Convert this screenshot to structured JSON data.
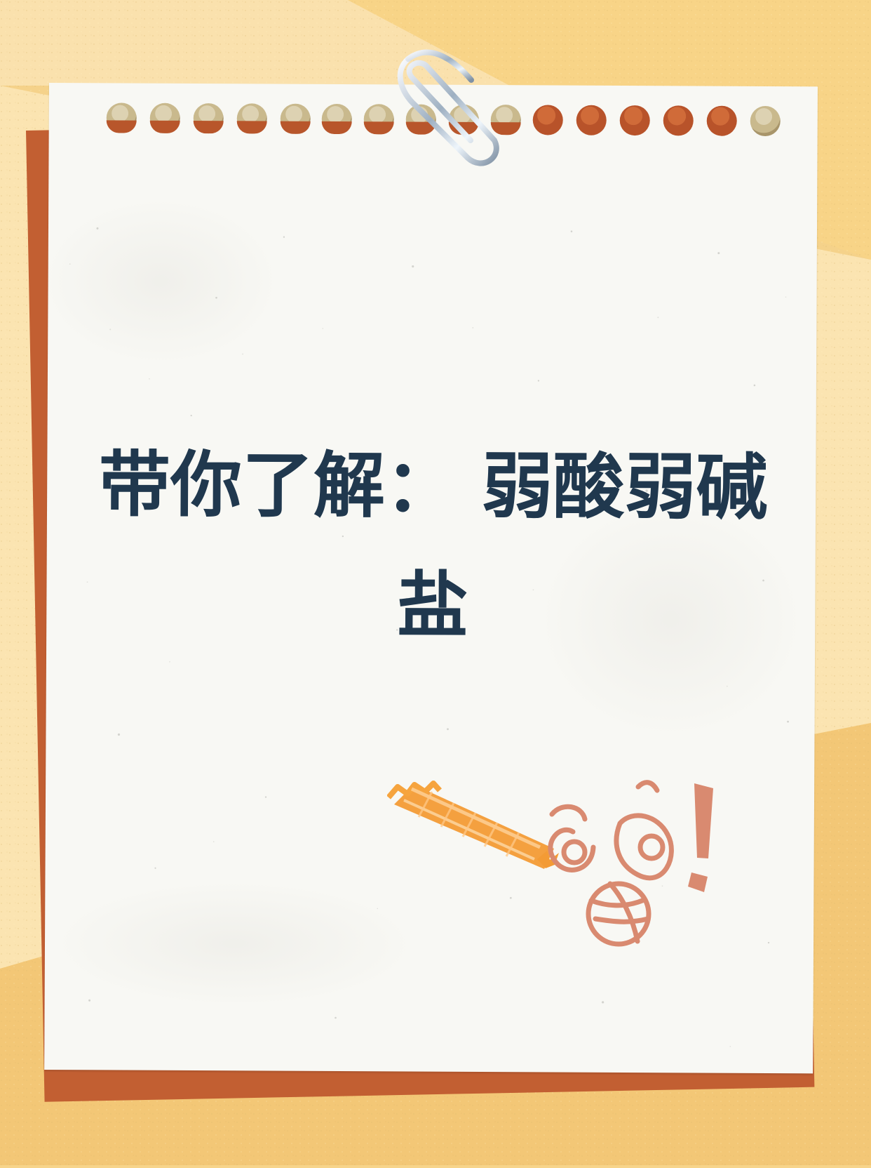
{
  "page": {
    "title_line_1": "带你了解： 弱酸弱碱",
    "title_line_2": "盐"
  },
  "icons": {
    "paperclip": "paperclip-icon",
    "tape": "washi-tape-icon",
    "surprised_face": "surprised-face-icon",
    "exclamation": "exclamation-icon"
  },
  "colors": {
    "background": "#f7d48a",
    "paper": "#f8f8f4",
    "back_sheet": "#c25f32",
    "title": "#20384e",
    "tape": "#f39b35",
    "doodle": "#d8896e"
  }
}
